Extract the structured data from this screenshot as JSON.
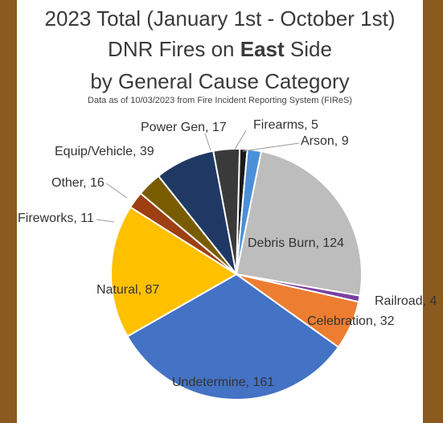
{
  "chart_data": {
    "type": "pie",
    "title_lines": [
      "2023 Total (January 1st - October 1st)",
      "DNR Fires on ",
      "East",
      " Side",
      "by General Cause Category"
    ],
    "subtitle": "Data as of 10/03/2023 from Fire Incident Reporting System (FIReS)",
    "slices": [
      {
        "label": "Firearms",
        "value": 5,
        "color": "#1a1a1a",
        "data_label": "Firearms, 5"
      },
      {
        "label": "Arson",
        "value": 9,
        "color": "#4a90d9",
        "data_label": "Arson, 9"
      },
      {
        "label": "Debris Burn",
        "value": 124,
        "color": "#bdbdbd",
        "data_label": "Debris Burn, 124"
      },
      {
        "label": "Railroad",
        "value": 4,
        "color": "#7a3fa0",
        "data_label": "Railroad, 4"
      },
      {
        "label": "Celebration",
        "value": 32,
        "color": "#ed7d31",
        "data_label": "Celebration, 32"
      },
      {
        "label": "Undetermine",
        "value": 161,
        "color": "#4472c4",
        "data_label": "Undetermine, 161"
      },
      {
        "label": "Natural",
        "value": 87,
        "color": "#ffc000",
        "data_label": "Natural, 87"
      },
      {
        "label": "Fireworks",
        "value": 11,
        "color": "#9e3f12",
        "data_label": "Fireworks, 11"
      },
      {
        "label": "Other",
        "value": 16,
        "color": "#7a5c00",
        "data_label": "Other, 16"
      },
      {
        "label": "Equip/Vehicle",
        "value": 39,
        "color": "#203864",
        "data_label": "Equip/Vehicle, 39"
      },
      {
        "label": "Power Gen",
        "value": 17,
        "color": "#3a3a3a",
        "data_label": "Power Gen, 17"
      }
    ]
  }
}
